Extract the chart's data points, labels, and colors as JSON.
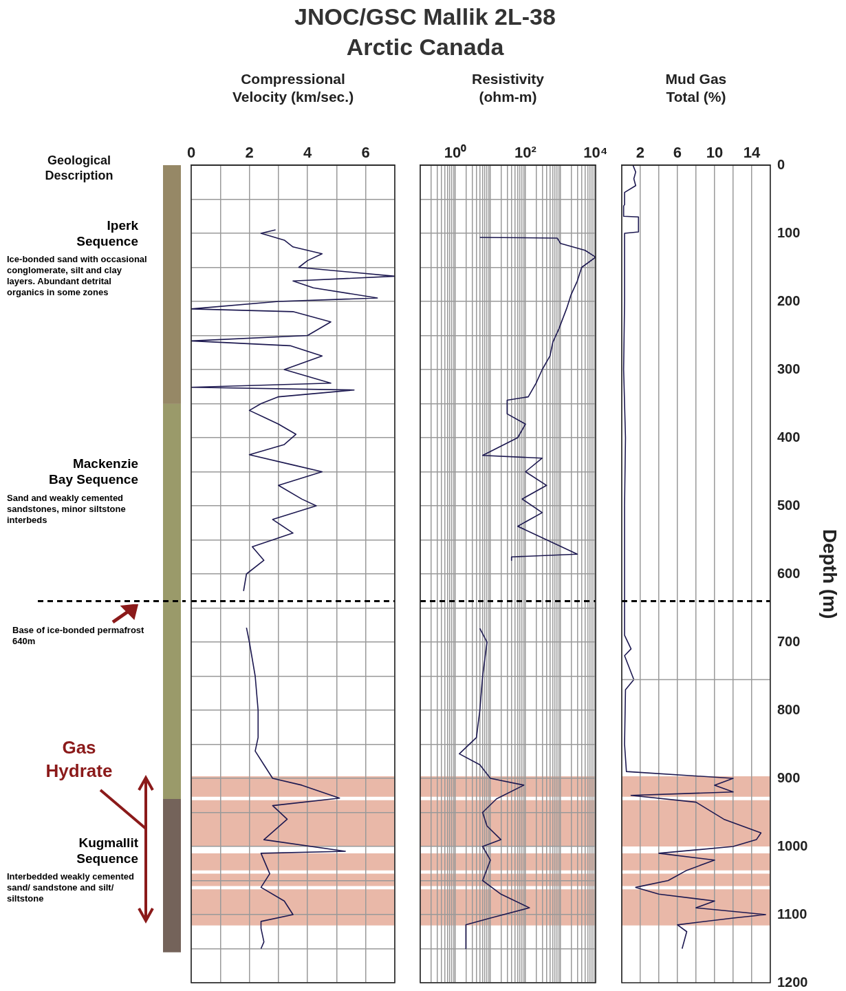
{
  "chart_data": [
    {
      "type": "other",
      "title": "JNOC/GSC Mallik 2L-38",
      "subtitle": "Arctic Canada"
    },
    {
      "type": "bar",
      "xlabel": "Geological Description",
      "stacked": true,
      "categories": [
        null
      ],
      "ylim": [
        1200,
        0
      ],
      "tick_labels": false,
      "grid": false,
      "legend": false,
      "series": [
        {
          "name": "Iperk Sequence",
          "color": "#968866",
          "values": [
            350
          ]
        },
        {
          "name": "Mackenzie Bay Sequence",
          "color": "#9a9a6a",
          "values": [
            580
          ]
        },
        {
          "name": "Kugmallit Sequence",
          "color": "#74635a",
          "values": [
            225
          ]
        }
      ],
      "annotations": [
        "Ice-bonded sand with occasional conglomerate, silt and clay layers. Abundant detrital organics in some zones",
        "Sand and weakly cemented sandstones, minor siltstone interbeds",
        "Interbedded weakly cemented sand/ sandstone and silt/ siltstone",
        "Gas Hydrate"
      ],
      "ref_lines": [
        {
          "axis": "y",
          "value": 640,
          "label": "Base of ice-bonded permafrost 640m",
          "line_style": "dashed",
          "color": "#000000"
        }
      ]
    },
    {
      "type": "line",
      "xlabel": "Compressional Velocity (km/sec.)",
      "xlim": [
        0,
        7
      ],
      "xticks": [
        0,
        {
          "value": 1,
          "label": null
        },
        2,
        {
          "value": 3,
          "label": null
        },
        4,
        {
          "value": 5,
          "label": null
        },
        6,
        {
          "value": 7,
          "label": null
        }
      ],
      "ylim": [
        1200,
        0
      ],
      "yticks": [
        0,
        50,
        100,
        150,
        200,
        250,
        300,
        350,
        400,
        450,
        500,
        550,
        600,
        650,
        700,
        750,
        800,
        850,
        900,
        950,
        1000,
        1050,
        1100,
        1150,
        1200
      ],
      "tick_labels": "x",
      "grid": true,
      "legend": false,
      "marker": "none",
      "line_style": "solid",
      "series": [
        {
          "color": "#1c1850",
          "x": [
            2.9,
            2.4,
            3.2,
            3.5,
            4.5,
            4.0,
            3.7,
            7.0,
            3.5,
            4.2,
            6.4,
            3.0,
            0,
            3.5,
            4.8,
            4.0,
            0,
            3.4,
            4.5,
            3.2,
            4.8,
            0,
            5.6,
            3.0,
            2.4,
            2.0,
            2.5,
            3.0,
            3.6,
            3.2,
            2.0,
            3.5,
            4.5,
            3.0,
            3.8,
            4.3,
            2.8,
            3.5,
            2.1,
            2.5,
            1.9,
            1.8,
            null,
            1.9,
            2.0,
            2.2,
            2.3,
            2.3,
            2.2,
            2.5,
            2.8,
            3.8,
            5.1,
            2.8,
            3.3,
            2.5,
            5.3,
            2.4,
            2.7,
            2.4,
            3.2,
            3.5,
            2.4,
            2.4,
            2.5,
            2.4
          ],
          "values": [
            95,
            100,
            110,
            120,
            130,
            140,
            150,
            163,
            170,
            180,
            195,
            200,
            211,
            215,
            230,
            250,
            258,
            265,
            280,
            300,
            320,
            326,
            330,
            340,
            350,
            360,
            370,
            380,
            395,
            410,
            425,
            440,
            450,
            470,
            490,
            500,
            520,
            540,
            560,
            580,
            600,
            625,
            null,
            679,
            700,
            750,
            800,
            840,
            860,
            880,
            900,
            910,
            929,
            940,
            960,
            990,
            1007,
            1010,
            1040,
            1060,
            1080,
            1100,
            1110,
            1120,
            1140,
            1150
          ]
        }
      ],
      "bands": [
        {
          "axis": "y",
          "from": 897,
          "to": 927,
          "color": "#e9b8a8"
        },
        {
          "axis": "y",
          "from": 932,
          "to": 1000,
          "color": "#e9b8a8"
        },
        {
          "axis": "y",
          "from": 1010,
          "to": 1035,
          "color": "#e9b8a8"
        },
        {
          "axis": "y",
          "from": 1040,
          "to": 1058,
          "color": "#e9b8a8"
        },
        {
          "axis": "y",
          "from": 1063,
          "to": 1116,
          "color": "#e9b8a8"
        }
      ],
      "ref_lines": [
        {
          "axis": "y",
          "value": 640,
          "line_style": "dashed",
          "color": "#000000"
        }
      ]
    },
    {
      "type": "line",
      "xlabel": "Resistivity (ohm-m)",
      "log": "x",
      "xlim": [
        0.1,
        10000
      ],
      "xticks": [
        {
          "value": 0.1,
          "label": null
        },
        {
          "value": 0.2,
          "label": null
        },
        {
          "value": 0.3,
          "label": null
        },
        {
          "value": 0.4,
          "label": null
        },
        {
          "value": 0.5,
          "label": null
        },
        {
          "value": 0.6,
          "label": null
        },
        {
          "value": 0.7,
          "label": null
        },
        {
          "value": 0.8,
          "label": null
        },
        {
          "value": 0.9,
          "label": null
        },
        {
          "value": 1,
          "label": "10⁰"
        },
        {
          "value": 2,
          "label": null
        },
        {
          "value": 3,
          "label": null
        },
        {
          "value": 4,
          "label": null
        },
        {
          "value": 5,
          "label": null
        },
        {
          "value": 6,
          "label": null
        },
        {
          "value": 7,
          "label": null
        },
        {
          "value": 8,
          "label": null
        },
        {
          "value": 9,
          "label": null
        },
        {
          "value": 10,
          "label": null
        },
        {
          "value": 20,
          "label": null
        },
        {
          "value": 30,
          "label": null
        },
        {
          "value": 40,
          "label": null
        },
        {
          "value": 50,
          "label": null
        },
        {
          "value": 60,
          "label": null
        },
        {
          "value": 70,
          "label": null
        },
        {
          "value": 80,
          "label": null
        },
        {
          "value": 90,
          "label": null
        },
        {
          "value": 100,
          "label": "10²"
        },
        {
          "value": 200,
          "label": null
        },
        {
          "value": 300,
          "label": null
        },
        {
          "value": 400,
          "label": null
        },
        {
          "value": 500,
          "label": null
        },
        {
          "value": 600,
          "label": null
        },
        {
          "value": 700,
          "label": null
        },
        {
          "value": 800,
          "label": null
        },
        {
          "value": 900,
          "label": null
        },
        {
          "value": 1000,
          "label": null
        },
        {
          "value": 2000,
          "label": null
        },
        {
          "value": 3000,
          "label": null
        },
        {
          "value": 4000,
          "label": null
        },
        {
          "value": 5000,
          "label": null
        },
        {
          "value": 6000,
          "label": null
        },
        {
          "value": 7000,
          "label": null
        },
        {
          "value": 8000,
          "label": null
        },
        {
          "value": 9000,
          "label": null
        },
        {
          "value": 10000,
          "label": "10⁴"
        }
      ],
      "ylim": [
        1200,
        0
      ],
      "yticks": [
        0,
        50,
        100,
        150,
        200,
        250,
        300,
        350,
        400,
        450,
        500,
        550,
        600,
        650,
        700,
        750,
        800,
        850,
        900,
        950,
        1000,
        1050,
        1100,
        1150,
        1200
      ],
      "tick_labels": "x",
      "grid": true,
      "legend": false,
      "marker": "none",
      "line_style": "solid",
      "series": [
        {
          "color": "#1c1850",
          "x": [
            5,
            800,
            1000,
            5000,
            10000,
            4000,
            3000,
            2000,
            1500,
            900,
            600,
            500,
            300,
            200,
            120,
            30,
            30,
            100,
            60,
            6,
            300,
            100,
            400,
            80,
            300,
            60,
            3000,
            40,
            40,
            null,
            5,
            8,
            6,
            5,
            4,
            1.3,
            5,
            10,
            90,
            15,
            6,
            8,
            20,
            6,
            10,
            6,
            20,
            130,
            10,
            2,
            2
          ],
          "values": [
            106,
            107,
            115,
            125,
            135,
            150,
            170,
            190,
            210,
            240,
            260,
            280,
            300,
            320,
            340,
            345,
            365,
            380,
            400,
            426,
            430,
            450,
            470,
            490,
            510,
            530,
            571,
            575,
            580,
            null,
            680,
            700,
            750,
            800,
            840,
            864,
            880,
            900,
            910,
            930,
            950,
            970,
            990,
            1000,
            1020,
            1050,
            1070,
            1090,
            1105,
            1115,
            1150
          ]
        }
      ],
      "bands": [
        {
          "axis": "y",
          "from": 897,
          "to": 927,
          "color": "#e9b8a8"
        },
        {
          "axis": "y",
          "from": 932,
          "to": 1000,
          "color": "#e9b8a8"
        },
        {
          "axis": "y",
          "from": 1010,
          "to": 1035,
          "color": "#e9b8a8"
        },
        {
          "axis": "y",
          "from": 1040,
          "to": 1058,
          "color": "#e9b8a8"
        },
        {
          "axis": "y",
          "from": 1063,
          "to": 1116,
          "color": "#e9b8a8"
        }
      ],
      "ref_lines": [
        {
          "axis": "y",
          "value": 640,
          "line_style": "dashed",
          "color": "#000000"
        }
      ]
    },
    {
      "type": "line",
      "xlabel": "Mud Gas Total (%)",
      "ylabel": "Depth (m)",
      "xlim": [
        0,
        16
      ],
      "xticks": [
        {
          "value": 0,
          "label": null
        },
        2,
        {
          "value": 4,
          "label": null
        },
        6,
        {
          "value": 8,
          "label": null
        },
        10,
        {
          "value": 12,
          "label": null
        },
        14,
        {
          "value": 16,
          "label": null
        }
      ],
      "ylim": [
        1200,
        0
      ],
      "yticks": [
        0,
        100,
        200,
        300,
        400,
        500,
        600,
        700,
        800,
        900,
        1000,
        1100,
        1200
      ],
      "grid": "x",
      "legend": false,
      "marker": "none",
      "line_style": "solid",
      "series": [
        {
          "color": "#1c1850",
          "x": [
            1.2,
            1.5,
            1.3,
            1.5,
            0.3,
            0.3,
            0.2,
            0.2,
            1.8,
            1.8,
            0.3,
            0.3,
            0.2,
            0.4,
            0.3,
            0.3,
            1.0,
            0.3,
            1.3,
            0.4,
            0.3,
            0.5,
            12,
            10,
            12,
            1.0,
            8,
            11,
            15,
            14.5,
            12,
            4,
            10,
            7,
            5,
            1.5,
            4,
            10,
            8,
            15.5,
            12,
            6,
            7,
            6.5
          ],
          "values": [
            0,
            10,
            20,
            30,
            40,
            58,
            60,
            75,
            76,
            98,
            100,
            200,
            300,
            400,
            500,
            690,
            710,
            720,
            755,
            770,
            850,
            890,
            900,
            910,
            920,
            925,
            935,
            960,
            980,
            990,
            1000,
            1010,
            1020,
            1035,
            1050,
            1060,
            1070,
            1080,
            1090,
            1100,
            1105,
            1115,
            1125,
            1150
          ]
        }
      ],
      "bands": [
        {
          "axis": "y",
          "from": 897,
          "to": 927,
          "color": "#e9b8a8"
        },
        {
          "axis": "y",
          "from": 932,
          "to": 1000,
          "color": "#e9b8a8"
        },
        {
          "axis": "y",
          "from": 1010,
          "to": 1035,
          "color": "#e9b8a8"
        },
        {
          "axis": "y",
          "from": 1040,
          "to": 1058,
          "color": "#e9b8a8"
        },
        {
          "axis": "y",
          "from": 1063,
          "to": 1116,
          "color": "#e9b8a8"
        }
      ],
      "ref_lines": [
        {
          "axis": "y",
          "value": 640,
          "line_style": "dashed",
          "color": "#000000"
        },
        {
          "axis": "y",
          "value": 755,
          "color": "#999999",
          "line_style": "solid"
        }
      ]
    }
  ]
}
